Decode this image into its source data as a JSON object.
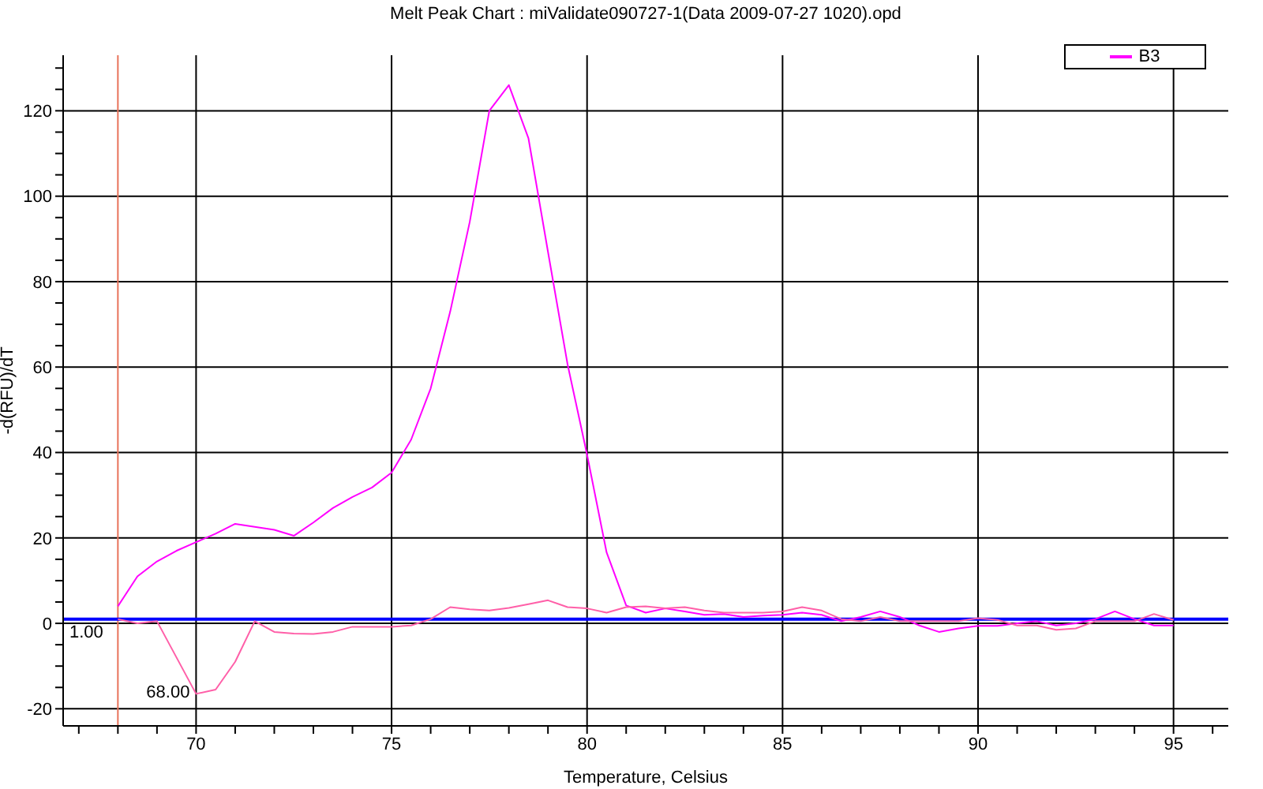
{
  "chart_data": {
    "type": "line",
    "title": "Melt Peak Chart : miValidate090727-1(Data 2009-07-27 1020).opd",
    "xlabel": "Temperature, Celsius",
    "ylabel": "-d(RFU)/dT",
    "x": [
      68,
      68.5,
      69,
      69.5,
      70,
      70.5,
      71,
      71.5,
      72,
      72.5,
      73,
      73.5,
      74,
      74.5,
      75,
      75.5,
      76,
      76.5,
      77,
      77.5,
      78,
      78.5,
      79,
      79.5,
      80,
      80.5,
      81,
      81.5,
      82,
      82.5,
      83,
      83.5,
      84,
      84.5,
      85,
      85.5,
      86,
      86.5,
      87,
      87.5,
      88,
      88.5,
      89,
      89.5,
      90,
      90.5,
      91,
      91.5,
      92,
      92.5,
      93,
      93.5,
      94,
      94.5,
      95
    ],
    "series": [
      {
        "name": "B3",
        "color": "#ff00ff",
        "values": [
          4,
          11,
          14.5,
          17,
          19,
          21,
          23.3,
          22.6,
          21.9,
          20.5,
          23.6,
          27,
          29.6,
          31.8,
          35.3,
          43,
          55,
          73,
          94,
          120,
          126,
          113.6,
          87,
          60.7,
          39.5,
          16.6,
          4.2,
          2.5,
          3.5,
          2.8,
          2,
          2.2,
          1.5,
          1.8,
          2,
          2.5,
          2,
          0.5,
          1.5,
          2.8,
          1.5,
          -0.5,
          -2,
          -1.2,
          -0.6,
          -0.6,
          0,
          0.5,
          -0.5,
          0,
          1,
          2.8,
          1,
          -0.5,
          -0.5
        ]
      },
      {
        "color": "#ff5fa8",
        "values": [
          1,
          0,
          0.5,
          -8,
          -16.5,
          -15.5,
          -9,
          0.5,
          -2,
          -2.4,
          -2.5,
          -2,
          -0.8,
          -0.8,
          -0.8,
          -0.5,
          1,
          3.8,
          3.3,
          3,
          3.6,
          4.5,
          5.4,
          3.8,
          3.5,
          2.5,
          3.8,
          4,
          3.5,
          3.8,
          3,
          2.5,
          2.5,
          2.5,
          2.8,
          3.8,
          3,
          1,
          0.5,
          1.5,
          0.5,
          0.5,
          0.5,
          0.5,
          1.2,
          0.8,
          -0.5,
          -0.5,
          -1.5,
          -1.2,
          0.5,
          0.5,
          0.5,
          2.2,
          0.8
        ]
      }
    ],
    "xlim": [
      66.6,
      96.4
    ],
    "ylim": [
      -24,
      133
    ],
    "xticks": [
      {
        "value": 67,
        "label": null
      },
      {
        "value": 68,
        "label": null
      },
      {
        "value": 69,
        "label": null
      },
      70,
      {
        "value": 71,
        "label": null
      },
      {
        "value": 72,
        "label": null
      },
      {
        "value": 73,
        "label": null
      },
      {
        "value": 74,
        "label": null
      },
      75,
      {
        "value": 76,
        "label": null
      },
      {
        "value": 77,
        "label": null
      },
      {
        "value": 78,
        "label": null
      },
      {
        "value": 79,
        "label": null
      },
      80,
      {
        "value": 81,
        "label": null
      },
      {
        "value": 82,
        "label": null
      },
      {
        "value": 83,
        "label": null
      },
      {
        "value": 84,
        "label": null
      },
      85,
      {
        "value": 86,
        "label": null
      },
      {
        "value": 87,
        "label": null
      },
      {
        "value": 88,
        "label": null
      },
      {
        "value": 89,
        "label": null
      },
      90,
      {
        "value": 91,
        "label": null
      },
      {
        "value": 92,
        "label": null
      },
      {
        "value": 93,
        "label": null
      },
      {
        "value": 94,
        "label": null
      },
      95,
      {
        "value": 96,
        "label": null
      }
    ],
    "yticks": [
      -20,
      {
        "value": -15,
        "label": null
      },
      {
        "value": -10,
        "label": null
      },
      {
        "value": -5,
        "label": null
      },
      0,
      {
        "value": 5,
        "label": null
      },
      {
        "value": 10,
        "label": null
      },
      {
        "value": 15,
        "label": null
      },
      20,
      {
        "value": 25,
        "label": null
      },
      {
        "value": 30,
        "label": null
      },
      {
        "value": 35,
        "label": null
      },
      40,
      {
        "value": 45,
        "label": null
      },
      {
        "value": 50,
        "label": null
      },
      {
        "value": 55,
        "label": null
      },
      60,
      {
        "value": 65,
        "label": null
      },
      {
        "value": 70,
        "label": null
      },
      {
        "value": 75,
        "label": null
      },
      80,
      {
        "value": 85,
        "label": null
      },
      {
        "value": 90,
        "label": null
      },
      {
        "value": 95,
        "label": null
      },
      100,
      {
        "value": 105,
        "label": null
      },
      {
        "value": 110,
        "label": null
      },
      {
        "value": 115,
        "label": null
      },
      120,
      {
        "value": 125,
        "label": null
      },
      {
        "value": 130,
        "label": null
      }
    ],
    "ref_lines": [
      {
        "axis": "x",
        "value": 68,
        "label": "68.00",
        "color": "#e8735a"
      },
      {
        "axis": "y",
        "value": 1,
        "label": "1.00",
        "color": "#0000ff"
      }
    ],
    "grid": true,
    "legend": "top right"
  }
}
